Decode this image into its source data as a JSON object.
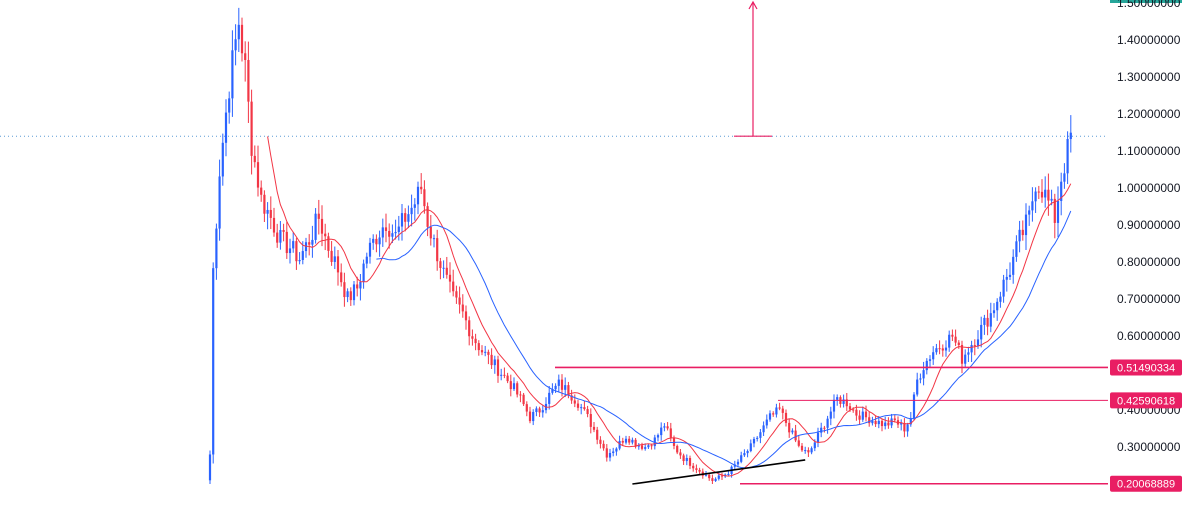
{
  "chart_data": {
    "type": "candlestick",
    "y_axis": {
      "position": "right",
      "ylim": [
        0.18,
        1.52
      ],
      "tick_labels": [
        "1.50000000",
        "1.40000000",
        "1.30000000",
        "1.20000000",
        "1.10000000",
        "1.00000000",
        "0.90000000",
        "0.80000000",
        "0.70000000",
        "0.60000000",
        "0.40000000",
        "0.30000000"
      ]
    },
    "current_price_line": 1.14,
    "horizontal_levels": [
      {
        "label": "0.51490334",
        "value": 0.5149,
        "color": "#e91e63"
      },
      {
        "label": "0.42590618",
        "value": 0.4259,
        "color": "#e91e63"
      },
      {
        "label": "0.20068889",
        "value": 0.2007,
        "color": "#e91e63"
      }
    ],
    "top_badge_color": "#26a69a",
    "colors": {
      "up": "#2962ff",
      "down": "#f23645",
      "ma_fast": "#f23645",
      "ma_slow": "#2962ff",
      "level_line": "#e91e63",
      "trendline": "#000000",
      "price_line": "#5b9bd5"
    },
    "measure_marker": {
      "from": 1.14,
      "to": 1.5
    },
    "trendline": {
      "from_index": 132,
      "from_value": 0.2,
      "to_index": 186,
      "to_value": 0.265
    },
    "price_path": [
      [
        0,
        0.28
      ],
      [
        1,
        0.78
      ],
      [
        3,
        1.05
      ],
      [
        6,
        1.28
      ],
      [
        9,
        1.45
      ],
      [
        11,
        1.32
      ],
      [
        13,
        1.12
      ],
      [
        16,
        0.97
      ],
      [
        19,
        0.92
      ],
      [
        22,
        0.86
      ],
      [
        25,
        0.84
      ],
      [
        28,
        0.81
      ],
      [
        31,
        0.86
      ],
      [
        34,
        0.92
      ],
      [
        37,
        0.84
      ],
      [
        40,
        0.78
      ],
      [
        43,
        0.7
      ],
      [
        46,
        0.73
      ],
      [
        49,
        0.82
      ],
      [
        52,
        0.87
      ],
      [
        55,
        0.91
      ],
      [
        58,
        0.87
      ],
      [
        61,
        0.92
      ],
      [
        64,
        0.96
      ],
      [
        66,
        1.0
      ],
      [
        68,
        0.91
      ],
      [
        70,
        0.85
      ],
      [
        73,
        0.77
      ],
      [
        76,
        0.7
      ],
      [
        79,
        0.66
      ],
      [
        82,
        0.6
      ],
      [
        85,
        0.56
      ],
      [
        88,
        0.53
      ],
      [
        91,
        0.5
      ],
      [
        94,
        0.47
      ],
      [
        97,
        0.43
      ],
      [
        100,
        0.38
      ],
      [
        103,
        0.4
      ],
      [
        106,
        0.44
      ],
      [
        109,
        0.47
      ],
      [
        112,
        0.45
      ],
      [
        115,
        0.42
      ],
      [
        118,
        0.38
      ],
      [
        121,
        0.33
      ],
      [
        124,
        0.28
      ],
      [
        127,
        0.3
      ],
      [
        130,
        0.33
      ],
      [
        133,
        0.31
      ],
      [
        136,
        0.3
      ],
      [
        139,
        0.32
      ],
      [
        142,
        0.36
      ],
      [
        145,
        0.3
      ],
      [
        148,
        0.27
      ],
      [
        151,
        0.25
      ],
      [
        154,
        0.23
      ],
      [
        157,
        0.21
      ],
      [
        160,
        0.22
      ],
      [
        163,
        0.24
      ],
      [
        166,
        0.27
      ],
      [
        169,
        0.3
      ],
      [
        172,
        0.34
      ],
      [
        175,
        0.38
      ],
      [
        178,
        0.4
      ],
      [
        181,
        0.35
      ],
      [
        184,
        0.3
      ],
      [
        187,
        0.28
      ],
      [
        190,
        0.33
      ],
      [
        193,
        0.38
      ],
      [
        196,
        0.43
      ],
      [
        199,
        0.42
      ],
      [
        202,
        0.39
      ],
      [
        205,
        0.38
      ],
      [
        208,
        0.37
      ],
      [
        211,
        0.36
      ],
      [
        214,
        0.37
      ],
      [
        217,
        0.35
      ],
      [
        219,
        0.38
      ],
      [
        221,
        0.48
      ],
      [
        223,
        0.52
      ],
      [
        226,
        0.56
      ],
      [
        229,
        0.58
      ],
      [
        232,
        0.6
      ],
      [
        235,
        0.54
      ],
      [
        238,
        0.58
      ],
      [
        241,
        0.62
      ],
      [
        244,
        0.66
      ],
      [
        247,
        0.72
      ],
      [
        250,
        0.78
      ],
      [
        253,
        0.86
      ],
      [
        256,
        0.92
      ],
      [
        258,
        1.02
      ],
      [
        260,
        1.0
      ],
      [
        262,
        0.96
      ],
      [
        264,
        0.92
      ],
      [
        266,
        1.03
      ],
      [
        268,
        1.1
      ],
      [
        269,
        1.14
      ]
    ]
  }
}
